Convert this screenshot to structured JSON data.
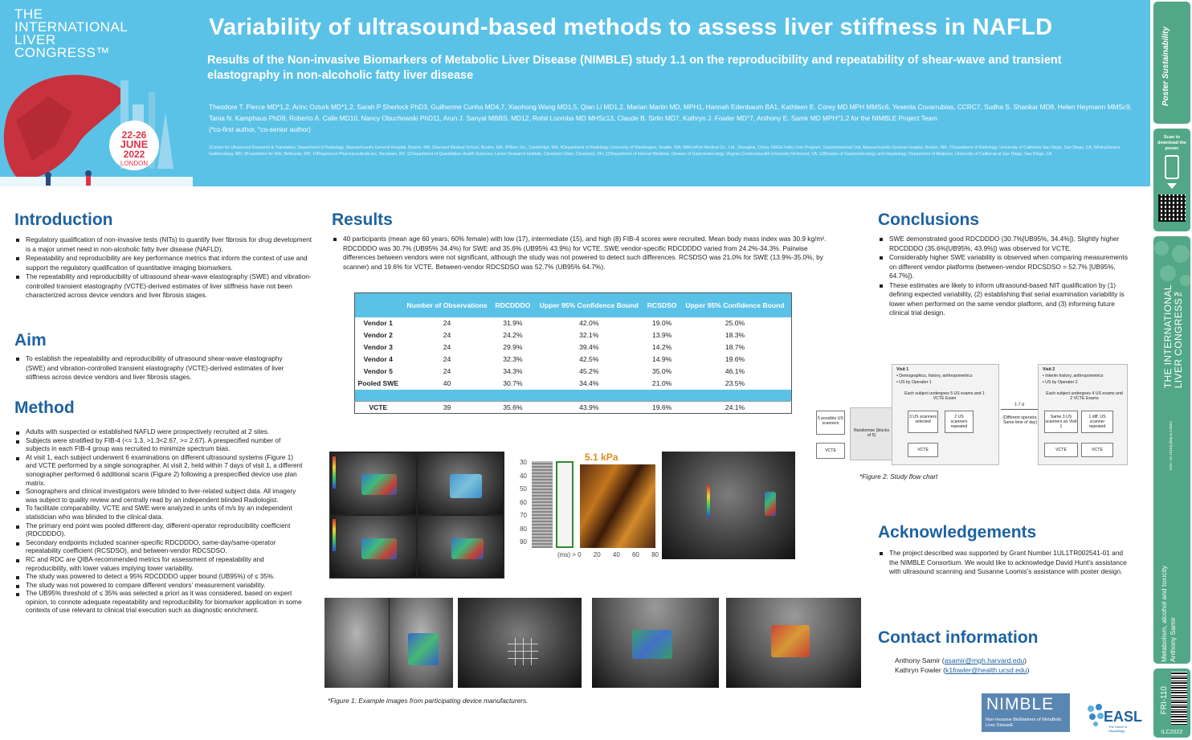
{
  "header": {
    "congress_logo_lines": [
      "THE",
      "INTERNATIONAL",
      "LIVER",
      "CONGRESS™"
    ],
    "date_badge": {
      "days": "22-26",
      "month": "JUNE",
      "year": "2022",
      "city": "LONDON"
    },
    "title": "Variability of ultrasound-based methods to assess liver stiffness in NAFLD",
    "subtitle": "Results of the Non-invasive Biomarkers of Metabolic Liver Disease (NIMBLE) study 1.1 on the reproducibility and repeatability of shear-wave and transient elastography in non-alcoholic fatty liver disease",
    "authors": "Theodore T. Pierce MD*1,2, Arinc Ozturk MD*1,2, Sarah P Sherlock PhD3, Guilherme Cunha MD4,7, Xiaohong Wang MD1,5, Qian Li MD1,2, Marian Martin MD, MPH1, Hannah Edenbaum BA1, Kathleen E. Corey MD MPH MMSc6, Yesenia Covarrubias, CCRC7, Sudha S. Shankar MD8, Helen Heymann MMSc9, Tania N. Kamphaus PhD9, Roberto A. Calle MD10, Nancy Obuchowski PhD11, Arun J. Sanyal MBBS, MD12, Rohit Loomba MD MHSc13, Claude B. Sirlin MD7, Kathryn J. Fowler MD°7, Anthony E. Samir MD MPH°1,2 for the NIMBLE Project Team",
    "author_note": "(*co-first author, °co-senior author)",
    "affiliations": "1Center for Ultrasound Research & Translation, Department of Radiology, Massachusetts General Hospital, Boston, MA; 2Harvard Medical School, Boston, MA; 3Pfizer, Inc., Cambridge, MA; 4Department of Radiology, University of Washington, Seattle, WA; 5MicroPort Medical Co., Ltd., Shanghai, China; 6MGH Fatty Liver Program, Gastrointestinal Unit, Massachusetts General Hospital, Boston, MA; 7Department of Radiology, University of California San Diego, San Diego, CA; 8AstraZeneca, Gaithersburg, MD; 9Foundation for NIH, Bethesda, MD; 10Regeneron Pharmaceuticals Inc, Tarrytown, NY; 11Department of Quantitative Health Sciences, Lerner Research Institute, Cleveland Clinic, Cleveland, OH; 12Department of Internal Medicine, Division of Gastroenterology, Virginia Commonwealth University Richmond, VA; 13Division of Gastroenterology and Hepatology, Department of Medicine, University of California at San Diego, San Diego, CA"
  },
  "sidebar": {
    "top_label": "Poster Sustainability",
    "scan_text": "Scan to download the poster",
    "conference_lines": [
      "THE INTERNATIONAL",
      "LIVER CONGRESS™"
    ],
    "doi": "DOI: 10.1016/j.jhep.ILC2022",
    "category_lines": [
      "Metabolism, alcohol and toxicity",
      "Anthony Samir"
    ],
    "poster_code": "FRI-110",
    "ilc": "ILC2022"
  },
  "introduction": {
    "heading": "Introduction",
    "bullets": [
      "Regulatory qualification of non-invasive tests (NITs) to quantify liver fibrosis for drug development is a major unmet need in non-alcoholic fatty liver disease (NAFLD).",
      "Repeatability and reproducibility are key performance metrics that inform the context of use and support the regulatory qualification of quantitative imaging biomarkers.",
      "The repeatability and reproducibility of ultrasound shear-wave elastography (SWE) and vibration-controlled transient elastography (VCTE)-derived estimates of liver stiffness have not been characterized across device vendors and liver fibrosis stages."
    ]
  },
  "aim": {
    "heading": "Aim",
    "bullets": [
      "To establish the repeatability and reproducibility of ultrasound shear-wave elastography (SWE) and vibration-controlled transient elastography (VCTE)-derived estimates of liver stiffness across device vendors and liver fibrosis stages."
    ]
  },
  "method": {
    "heading": "Method",
    "bullets": [
      "Adults with suspected or established NAFLD were prospectively recruited at 2 sites.",
      "Subjects were stratified by FIB-4 (<= 1.3, >1.3<2.67, >= 2.67). A prespecified number of subjects in each FIB-4 group was recruited to minimize spectrum bias.",
      "At visit 1, each subject underwent 6 examinations on different ultrasound systems (Figure 1) and VCTE performed by a single sonographer. At visit 2, held within 7 days of visit 1, a different sonographer performed 6 additional scans (Figure 2) following a prespecified device use plan matrix.",
      "Sonographers and clinical investigators were blinded to liver-related subject data. All imagery was subject to quality review and centrally read by an independent blinded Radiologist.",
      "To facilitate comparability, VCTE and SWE were analyzed in units of m/s by an independent statistician who was blinded to the clinical data.",
      "The primary end point was pooled different-day, different-operator reproducibility coefficient (RDCDDDO).",
      "Secondary endpoints included scanner-specific RDCDDDO, same-day/same-operator repeatability coefficient (RCSDSO), and between-vendor RDCSDSO.",
      "RC and RDC are QIBA-recommended metrics for assessment of repeatability and reproducibility, with lower values implying lower variability.",
      "The study was powered to detect a 95% RDCDDDO upper bound (UB95%) of ≤ 35%.",
      "The study was not powered to compare different vendors’ measurement variability.",
      "The UB95% threshold of ≤ 35% was selected a priori as it was considered, based on expert opinion, to connote adequate repeatability and reproducibility for biomarker application in some contexts of use relevant to clinical trial execution such as diagnostic enrichment."
    ]
  },
  "results": {
    "heading": "Results",
    "text": "40 participants (mean age 60 years, 60% female) with low (17), intermediate (15), and high (8) FIB-4 scores were recruited. Mean body mass index was 30.9 kg/m². RDCDDDO was 30.7% (UB95% 34.4%) for SWE and 35.6% (UB95% 43.9%) for VCTE. SWE vendor-specific RDCDDDO varied from 24.2%-34.3%. Pairwise differences between vendors were not significant, although the study was not powered to detect such differences. RCSDSO was 21.0% for SWE (13.9%-35.0%, by scanner) and 19.6% for VCTE. Between-vendor RDCSDSO was 52.7% (UB95% 64.7%).",
    "table": {
      "headers": [
        "",
        "Number of Observations",
        "RDCDDDO",
        "Upper 95% Confidence Bound",
        "RCSDSO",
        "Upper 95% Confidence Bound"
      ],
      "rows": [
        [
          "Vendor 1",
          "24",
          "31.9%",
          "42.0%",
          "19.0%",
          "25.0%"
        ],
        [
          "Vendor 2",
          "24",
          "24.2%",
          "32.1%",
          "13.9%",
          "18.3%"
        ],
        [
          "Vendor 3",
          "24",
          "29.9%",
          "39.4%",
          "14.2%",
          "18.7%"
        ],
        [
          "Vendor 4",
          "24",
          "32.3%",
          "42.5%",
          "14.9%",
          "19.6%"
        ],
        [
          "Vendor 5",
          "24",
          "34.3%",
          "45.2%",
          "35.0%",
          "46.1%"
        ],
        [
          "Pooled SWE",
          "40",
          "30.7%",
          "34.4%",
          "21.0%",
          "23.5%"
        ]
      ],
      "last_row": [
        "VCTE",
        "39",
        "35.6%",
        "43.9%",
        "19.6%",
        "24.1%"
      ]
    },
    "figure1_caption": "*Figure 1: Example images from participating device manufacturers.",
    "vcte_value": "5.1 kPa",
    "vcte_axis": [
      "30",
      "40",
      "50",
      "60",
      "70",
      "80",
      "90"
    ],
    "vcte_xaxis": [
      "(ms) > 0",
      "20",
      "40",
      "60",
      "80"
    ]
  },
  "conclusions": {
    "heading": "Conclusions",
    "bullets": [
      "SWE demonstrated good RDCDDDO (30.7%[UB95%, 34.4%]). Slightly higher RDCDDDO (35.6%[UB95%, 43.9%]) was observed for VCTE.",
      "Considerably higher SWE variability is observed when comparing measurements on different vendor platforms (between-vendor RDCSDSO = 52.7% [UB95%, 64.7%]).",
      "These estimates are likely to inform ultrasound-based NIT qualification by (1) defining expected variability, (2) establishing that serial examination variability is lower when performed on the same vendor platform, and (3) informing future clinical trial design."
    ],
    "figure2_caption": "*Figure 2: Study flow chart",
    "flow": {
      "left_top": "5 possible US scanners",
      "left_bottom": "VCTE",
      "randomize": "Randomize (blocks of 5)",
      "visit1_title": "Visit 1",
      "visit1_lines": [
        "• Demographics, history, anthropometrics",
        "• US by Operator 1"
      ],
      "visit1_each": "Each subject undergoes 5 US exams and 1 VCTE Exam",
      "v1_box1": "3 US scanners selected",
      "v1_box2": "2 US scanners repeated",
      "v1_vcte": "VCTE",
      "gap_days": "1-7 d",
      "gap_text": "(Different operator, Same time of day)",
      "visit2_title": "Visit 2",
      "visit2_lines": [
        "• Interim history, anthropometrics",
        "• US by Operator 2"
      ],
      "visit2_each": "Each subject undergoes 4 US exams and 2 VCTE Exams",
      "v2_box1": "Same 3 US scanners as Visit 1",
      "v2_box2": "1 diff. US scanner repeated",
      "v2_vcte1": "VCTE",
      "v2_vcte2": "VCTE"
    }
  },
  "acknowledgements": {
    "heading": "Acknowledgements",
    "bullets": [
      "The project described was supported by Grant Number 1UL1TR002541-01 and the NIMBLE Consortium. We would like to acknowledge David Hunt’s assistance with ultrasound scanning and Susanne Loomis’s assistance with poster design."
    ]
  },
  "contact": {
    "heading": "Contact information",
    "line1_name": "Anthony Samir (",
    "line1_email": "asamir@mgh.harvard.edu",
    "line1_end": ")",
    "line2_name": "Kathryn Fowler (",
    "line2_email": "k1fowler@health.ucsd.edu",
    "line2_end": ")"
  },
  "logos": {
    "nimble_big": "NIMBLE",
    "nimble_small": "Non-Invasive BioMarkers of MetaBolic Liver DiseasE",
    "easl": "EASL",
    "easl_sub": "The Home of Hepatology"
  },
  "colors": {
    "header_blue": "#5bc2e7",
    "heading_blue": "#1e62a0",
    "sidebar_green": "#52a787",
    "date_red": "#e0334a"
  }
}
